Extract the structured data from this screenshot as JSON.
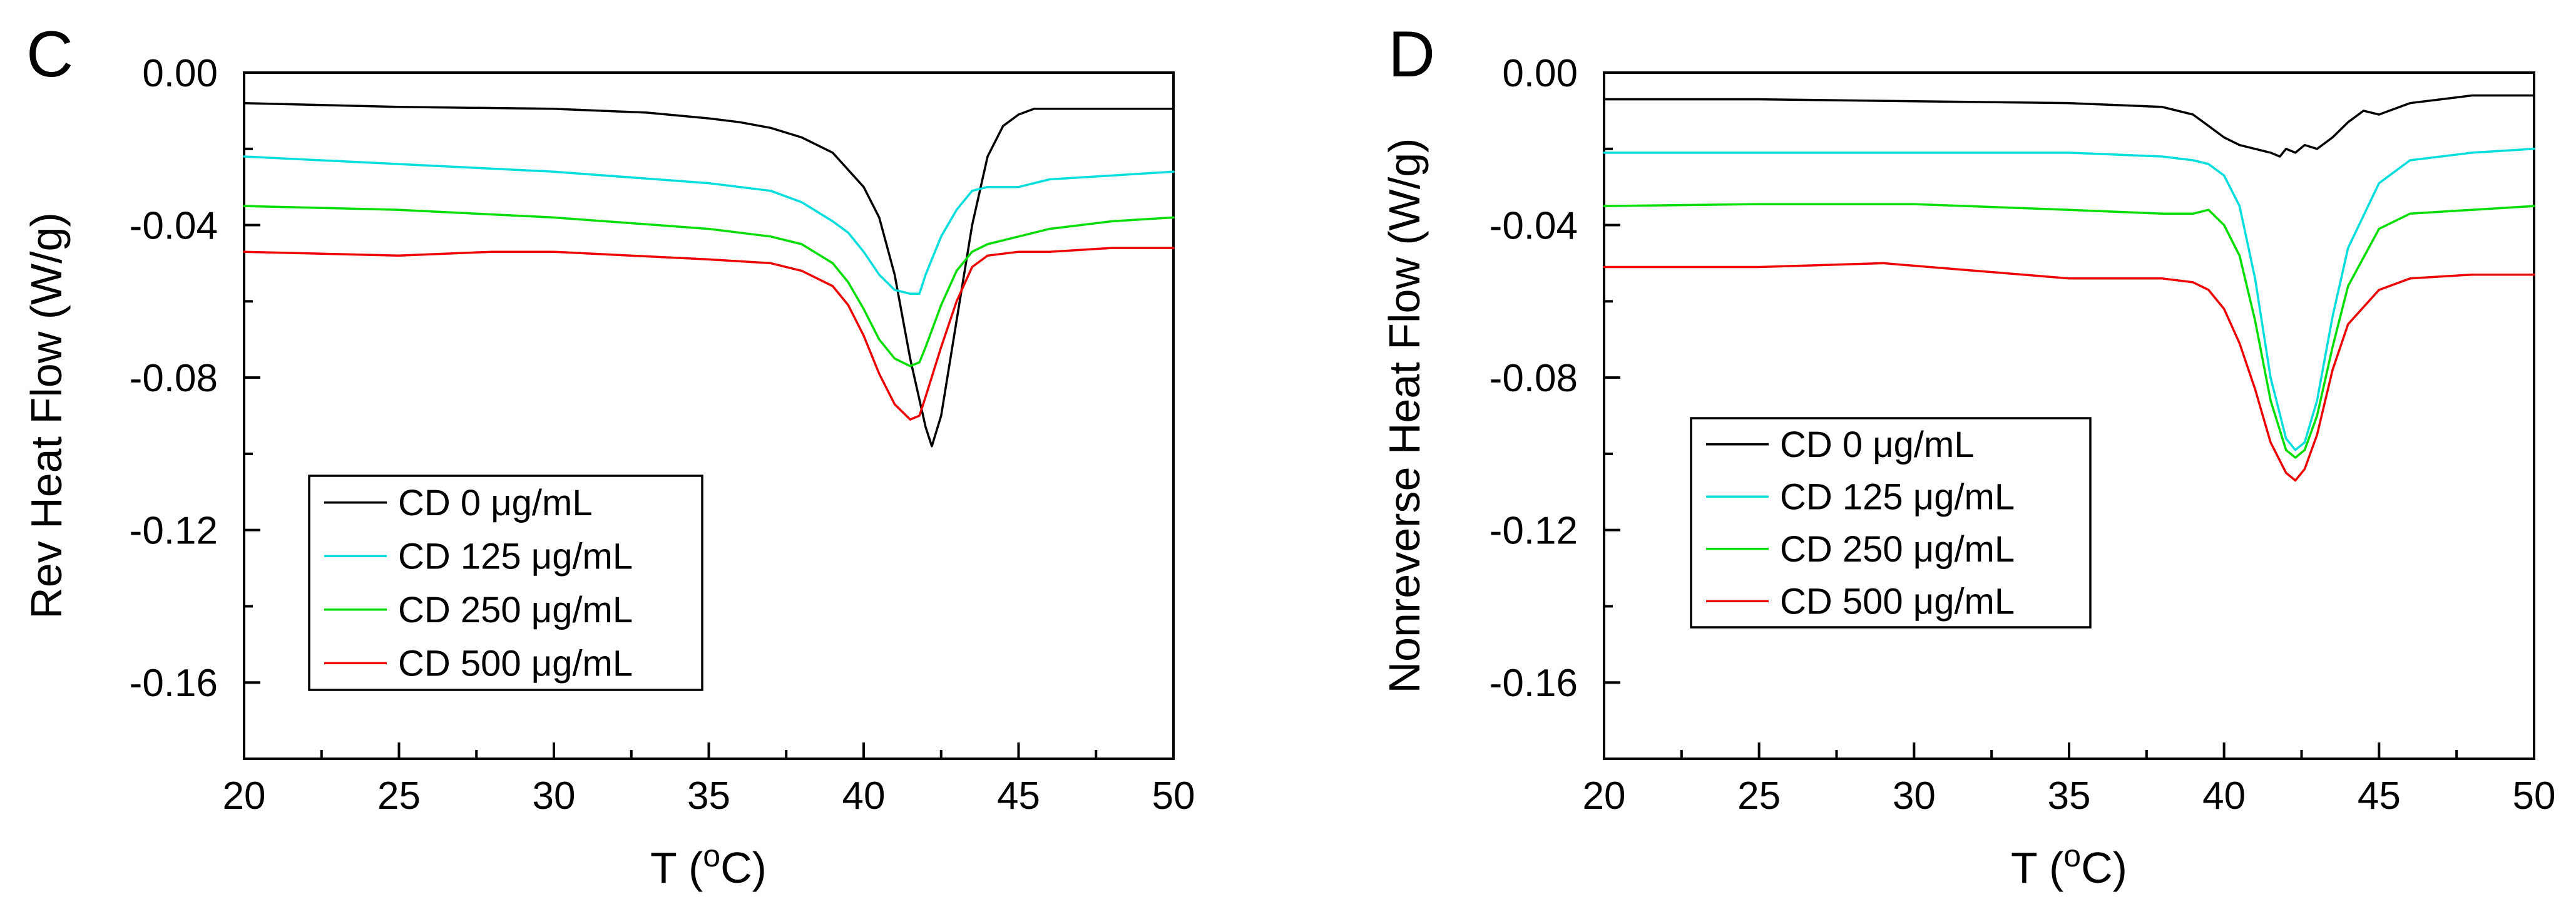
{
  "chart_data": [
    {
      "type": "line",
      "panel_label": "C",
      "title": "",
      "xlabel": "T",
      "xlabel_unit_sup": "o",
      "xlabel_unit_base": "C",
      "ylabel": "Rev Heat Flow (W/g)",
      "xlim": [
        20,
        50
      ],
      "ylim": [
        -0.18,
        0.0
      ],
      "x_ticks": [
        20,
        25,
        30,
        35,
        40,
        45,
        50
      ],
      "x_tick_labels": [
        "20",
        "25",
        "30",
        "35",
        "40",
        "45",
        "50"
      ],
      "y_ticks": [
        0.0,
        -0.04,
        -0.08,
        -0.12,
        -0.16
      ],
      "y_tick_labels": [
        "0.00",
        "-0.04",
        "-0.08",
        "-0.12",
        "-0.16"
      ],
      "grid": false,
      "legend_position": "lower-left",
      "series": [
        {
          "name": "CD 0 μg/mL",
          "color": "#000000",
          "x": [
            20,
            25,
            30,
            33,
            35,
            36,
            37,
            38,
            39,
            40,
            40.5,
            41,
            41.5,
            42,
            42.2,
            42.5,
            43,
            43.5,
            44,
            44.5,
            45,
            45.5,
            47,
            50
          ],
          "y": [
            -0.008,
            -0.009,
            -0.0095,
            -0.0105,
            -0.012,
            -0.013,
            -0.0145,
            -0.017,
            -0.021,
            -0.03,
            -0.038,
            -0.053,
            -0.075,
            -0.093,
            -0.098,
            -0.09,
            -0.065,
            -0.04,
            -0.022,
            -0.014,
            -0.011,
            -0.0095,
            -0.0095,
            -0.0095
          ]
        },
        {
          "name": "CD 125 μg/mL",
          "color": "#00dddd",
          "x": [
            20,
            25,
            30,
            35,
            37,
            38,
            39,
            39.5,
            40,
            40.5,
            41,
            41.5,
            41.8,
            42,
            42.5,
            43,
            43.5,
            44,
            45,
            46,
            48,
            50
          ],
          "y": [
            -0.022,
            -0.024,
            -0.026,
            -0.029,
            -0.031,
            -0.034,
            -0.039,
            -0.042,
            -0.047,
            -0.053,
            -0.057,
            -0.058,
            -0.058,
            -0.053,
            -0.043,
            -0.036,
            -0.031,
            -0.03,
            -0.03,
            -0.028,
            -0.027,
            -0.026
          ]
        },
        {
          "name": "CD 250 μg/mL",
          "color": "#00dd00",
          "x": [
            20,
            25,
            30,
            35,
            37,
            38,
            39,
            39.5,
            40,
            40.5,
            41,
            41.5,
            41.8,
            42,
            42.5,
            43,
            43.5,
            44,
            45,
            46,
            48,
            50
          ],
          "y": [
            -0.035,
            -0.036,
            -0.038,
            -0.041,
            -0.043,
            -0.045,
            -0.05,
            -0.055,
            -0.062,
            -0.07,
            -0.075,
            -0.077,
            -0.076,
            -0.072,
            -0.061,
            -0.052,
            -0.047,
            -0.045,
            -0.043,
            -0.041,
            -0.039,
            -0.038
          ]
        },
        {
          "name": "CD 500 μg/mL",
          "color": "#ee0000",
          "x": [
            20,
            25,
            28,
            30,
            35,
            37,
            38,
            39,
            39.5,
            40,
            40.5,
            41,
            41.5,
            41.8,
            42,
            42.5,
            43,
            43.5,
            44,
            45,
            46,
            48,
            50
          ],
          "y": [
            -0.047,
            -0.048,
            -0.047,
            -0.047,
            -0.049,
            -0.05,
            -0.052,
            -0.056,
            -0.061,
            -0.069,
            -0.079,
            -0.087,
            -0.091,
            -0.09,
            -0.085,
            -0.072,
            -0.06,
            -0.051,
            -0.048,
            -0.047,
            -0.047,
            -0.046,
            -0.046
          ]
        }
      ]
    },
    {
      "type": "line",
      "panel_label": "D",
      "title": "",
      "xlabel": "T",
      "xlabel_unit_sup": "o",
      "xlabel_unit_base": "C",
      "ylabel": "Nonreverse Heat Flow (W/g)",
      "xlim": [
        20,
        50
      ],
      "ylim": [
        -0.18,
        0.0
      ],
      "x_ticks": [
        20,
        25,
        30,
        35,
        40,
        45,
        50
      ],
      "x_tick_labels": [
        "20",
        "25",
        "30",
        "35",
        "40",
        "45",
        "50"
      ],
      "y_ticks": [
        0.0,
        -0.04,
        -0.08,
        -0.12,
        -0.16
      ],
      "y_tick_labels": [
        "0.00",
        "-0.04",
        "-0.08",
        "-0.12",
        "-0.16"
      ],
      "grid": false,
      "legend_position": "lower-left",
      "series": [
        {
          "name": "CD 0 μg/mL",
          "color": "#000000",
          "x": [
            20,
            25,
            30,
            35,
            38,
            39,
            39.5,
            40,
            40.5,
            41,
            41.5,
            41.8,
            42,
            42.3,
            42.6,
            43,
            43.5,
            44,
            44.5,
            45,
            46,
            47,
            48,
            50
          ],
          "y": [
            -0.007,
            -0.007,
            -0.0075,
            -0.008,
            -0.009,
            -0.011,
            -0.014,
            -0.017,
            -0.019,
            -0.02,
            -0.021,
            -0.022,
            -0.02,
            -0.021,
            -0.019,
            -0.02,
            -0.017,
            -0.013,
            -0.01,
            -0.011,
            -0.008,
            -0.007,
            -0.006,
            -0.006
          ]
        },
        {
          "name": "CD 125 μg/mL",
          "color": "#00dddd",
          "x": [
            20,
            25,
            30,
            35,
            38,
            39,
            39.5,
            40,
            40.5,
            41,
            41.5,
            42,
            42.3,
            42.6,
            43,
            43.5,
            44,
            45,
            46,
            48,
            50
          ],
          "y": [
            -0.021,
            -0.021,
            -0.021,
            -0.021,
            -0.022,
            -0.023,
            -0.024,
            -0.027,
            -0.035,
            -0.054,
            -0.08,
            -0.096,
            -0.099,
            -0.097,
            -0.086,
            -0.064,
            -0.046,
            -0.029,
            -0.023,
            -0.021,
            -0.02
          ]
        },
        {
          "name": "CD 250 μg/mL",
          "color": "#00dd00",
          "x": [
            20,
            25,
            30,
            35,
            38,
            39,
            39.5,
            40,
            40.5,
            41,
            41.5,
            42,
            42.3,
            42.6,
            43,
            43.5,
            44,
            45,
            46,
            48,
            50
          ],
          "y": [
            -0.035,
            -0.0345,
            -0.0345,
            -0.036,
            -0.037,
            -0.037,
            -0.036,
            -0.04,
            -0.048,
            -0.065,
            -0.086,
            -0.099,
            -0.101,
            -0.099,
            -0.09,
            -0.072,
            -0.056,
            -0.041,
            -0.037,
            -0.036,
            -0.035
          ]
        },
        {
          "name": "CD 500 μg/mL",
          "color": "#ee0000",
          "x": [
            20,
            25,
            29,
            32,
            35,
            37,
            38,
            39,
            39.5,
            40,
            40.5,
            41,
            41.5,
            42,
            42.3,
            42.6,
            43,
            43.5,
            44,
            45,
            46,
            48,
            50
          ],
          "y": [
            -0.051,
            -0.051,
            -0.05,
            -0.052,
            -0.054,
            -0.054,
            -0.054,
            -0.055,
            -0.057,
            -0.062,
            -0.071,
            -0.083,
            -0.097,
            -0.105,
            -0.107,
            -0.104,
            -0.095,
            -0.078,
            -0.066,
            -0.057,
            -0.054,
            -0.053,
            -0.053
          ]
        }
      ]
    }
  ]
}
